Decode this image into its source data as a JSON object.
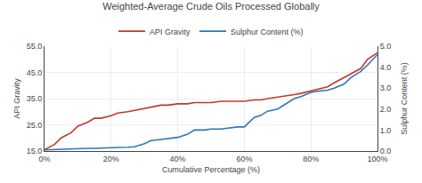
{
  "chart_data": {
    "type": "line",
    "title": "Weighted-Average Crude Oils Processed Globally",
    "xlabel": "Cumulative Percentage (%)",
    "ylabel": "API Gravity",
    "y2label": "Sulphur Content (%)",
    "x": [
      0,
      0.03,
      0.05,
      0.08,
      0.1,
      0.13,
      0.15,
      0.17,
      0.2,
      0.22,
      0.25,
      0.27,
      0.3,
      0.32,
      0.35,
      0.37,
      0.4,
      0.43,
      0.45,
      0.48,
      0.5,
      0.53,
      0.55,
      0.58,
      0.6,
      0.63,
      0.65,
      0.67,
      0.7,
      0.72,
      0.75,
      0.77,
      0.8,
      0.82,
      0.85,
      0.87,
      0.9,
      0.92,
      0.95,
      0.97,
      1.0
    ],
    "series": [
      {
        "name": "API Gravity",
        "color": "#c0392b",
        "values": [
          15.5,
          17.5,
          20.0,
          22.0,
          24.5,
          26.0,
          27.5,
          27.5,
          28.5,
          29.5,
          30.0,
          30.5,
          31.5,
          32.0,
          32.5,
          32.5,
          33.0,
          33.0,
          33.5,
          33.5,
          33.5,
          34.0,
          34.0,
          34.0,
          34.0,
          34.5,
          34.5,
          35.0,
          35.5,
          36.0,
          36.5,
          37.0,
          38.0,
          38.5,
          39.5,
          41.0,
          43.0,
          44.5,
          46.5,
          50.0,
          52.5
        ]
      },
      {
        "name": "Sulphur Content (%)",
        "color": "#2e75b6",
        "axis": "y2",
        "values": [
          0.05,
          0.07,
          0.1,
          0.1,
          0.12,
          0.13,
          0.13,
          0.15,
          0.15,
          0.17,
          0.18,
          0.2,
          0.35,
          0.5,
          0.55,
          0.6,
          0.65,
          0.8,
          1.0,
          1.0,
          1.05,
          1.05,
          1.1,
          1.15,
          1.15,
          1.6,
          1.7,
          1.9,
          2.0,
          2.2,
          2.5,
          2.6,
          2.8,
          2.85,
          2.9,
          3.0,
          3.2,
          3.5,
          3.8,
          4.1,
          4.6
        ]
      }
    ],
    "xlim": [
      0.0,
      1.0
    ],
    "xticks": [
      {
        "value": 0,
        "label": "0%"
      },
      {
        "value": 0.2,
        "label": "20%"
      },
      {
        "value": 0.4,
        "label": "40%"
      },
      {
        "value": 0.6,
        "label": "60%"
      },
      {
        "value": 0.8,
        "label": "80%"
      },
      {
        "value": 1.0,
        "label": "100%"
      }
    ],
    "ylim": [
      15.0,
      55.0
    ],
    "yticks": [
      {
        "value": 15,
        "label": "15.0"
      },
      {
        "value": 25,
        "label": "25.0"
      },
      {
        "value": 35,
        "label": "35.0"
      },
      {
        "value": 45,
        "label": "45.0"
      },
      {
        "value": 55,
        "label": "55.0"
      }
    ],
    "y2lim": [
      0.0,
      5.0
    ],
    "y2ticks": [
      {
        "value": 0,
        "label": "0.0"
      },
      {
        "value": 1,
        "label": "1.0"
      },
      {
        "value": 2,
        "label": "2.0"
      },
      {
        "value": 3,
        "label": "3.0"
      },
      {
        "value": 4,
        "label": "4.0"
      },
      {
        "value": 5,
        "label": "5.0"
      }
    ],
    "grid": true,
    "legend": "top"
  }
}
